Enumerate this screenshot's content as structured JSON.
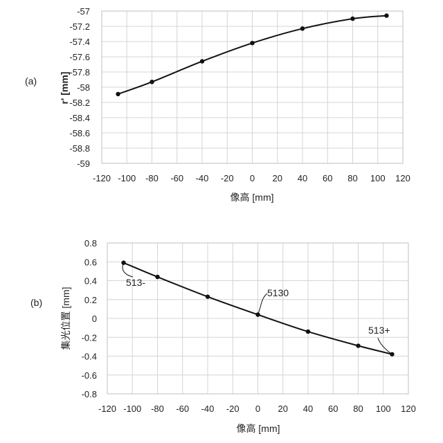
{
  "chart_data": [
    {
      "type": "line",
      "panel_label": "(a)",
      "xlabel": "像高 [mm]",
      "ylabel": "r' [mm]",
      "xlim": [
        -120,
        120
      ],
      "ylim": [
        -59,
        -57
      ],
      "x_ticks": [
        -120,
        -100,
        -80,
        -60,
        -40,
        -20,
        0,
        20,
        40,
        60,
        80,
        100,
        120
      ],
      "y_ticks": [
        -57,
        -57.2,
        -57.4,
        -57.6,
        -57.8,
        -58,
        -58.2,
        -58.4,
        -58.6,
        -58.8,
        -59
      ],
      "grid": true,
      "series": [
        {
          "x": [
            -107,
            -80,
            -40,
            0,
            40,
            80,
            107
          ],
          "y": [
            -58.09,
            -57.93,
            -57.66,
            -57.42,
            -57.23,
            -57.1,
            -57.06
          ]
        }
      ]
    },
    {
      "type": "line",
      "panel_label": "(b)",
      "xlabel": "像高 [mm]",
      "ylabel": "集光位置 [mm]",
      "xlim": [
        -120,
        120
      ],
      "ylim": [
        -0.8,
        0.8
      ],
      "x_ticks": [
        -120,
        -100,
        -80,
        -60,
        -40,
        -20,
        0,
        20,
        40,
        60,
        80,
        100,
        120
      ],
      "y_ticks": [
        0.8,
        0.6,
        0.4,
        0.2,
        0,
        -0.2,
        -0.4,
        -0.6,
        -0.8
      ],
      "grid": true,
      "series": [
        {
          "x": [
            -107,
            -80,
            -40,
            0,
            40,
            80,
            107
          ],
          "y": [
            0.59,
            0.44,
            0.23,
            0.04,
            -0.14,
            -0.29,
            -0.38
          ]
        }
      ],
      "annotations": [
        {
          "text": "513-",
          "point_x": -107,
          "point_y": 0.59
        },
        {
          "text": "5130",
          "point_x": 0,
          "point_y": 0.04
        },
        {
          "text": "513+",
          "point_x": 107,
          "point_y": -0.38
        }
      ]
    }
  ]
}
